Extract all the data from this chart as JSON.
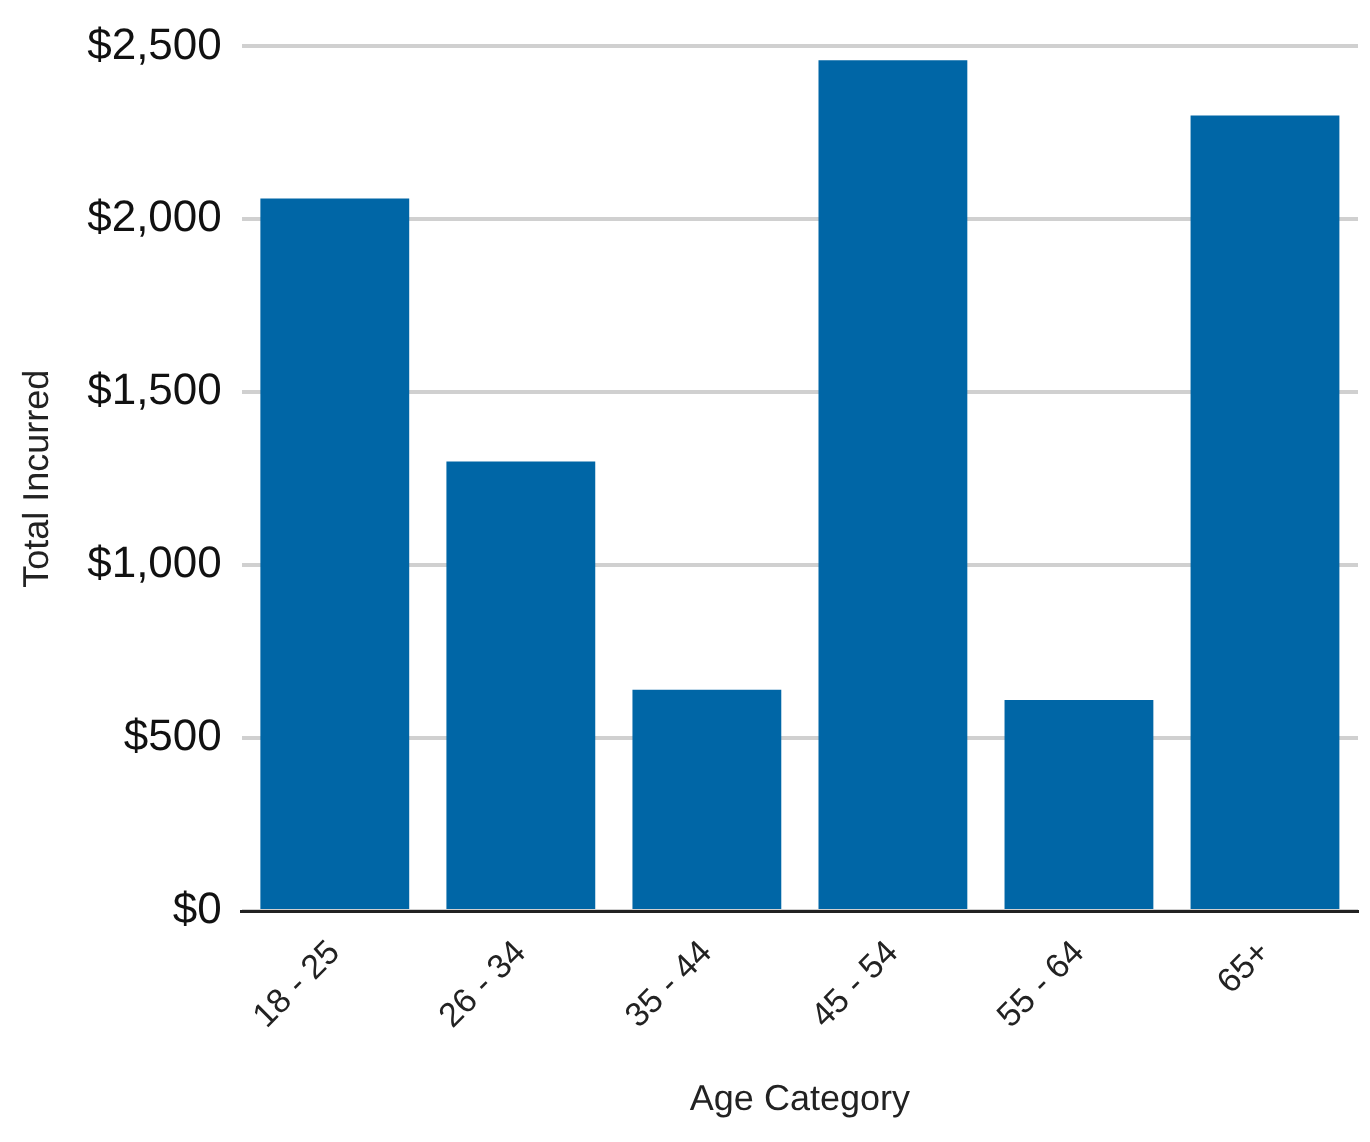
{
  "chart_data": {
    "type": "bar",
    "xlabel": "Age Category",
    "ylabel": "Total Incurred",
    "categories": [
      "18 - 25",
      "26 - 34",
      "35 - 44",
      "45 - 54",
      "55 - 64",
      "65+"
    ],
    "values": [
      2060,
      1300,
      640,
      2460,
      610,
      2300
    ],
    "color": "#0066a6",
    "ylim": [
      0,
      2500
    ],
    "yticks": [
      {
        "value": 0,
        "label": "$0"
      },
      {
        "value": 500,
        "label": "$500"
      },
      {
        "value": 1000,
        "label": "$1,000"
      },
      {
        "value": 1500,
        "label": "$1,500"
      },
      {
        "value": 2000,
        "label": "$2,000"
      },
      {
        "value": 2500,
        "label": "$2,500"
      }
    ],
    "grid": "y",
    "legend": false
  }
}
